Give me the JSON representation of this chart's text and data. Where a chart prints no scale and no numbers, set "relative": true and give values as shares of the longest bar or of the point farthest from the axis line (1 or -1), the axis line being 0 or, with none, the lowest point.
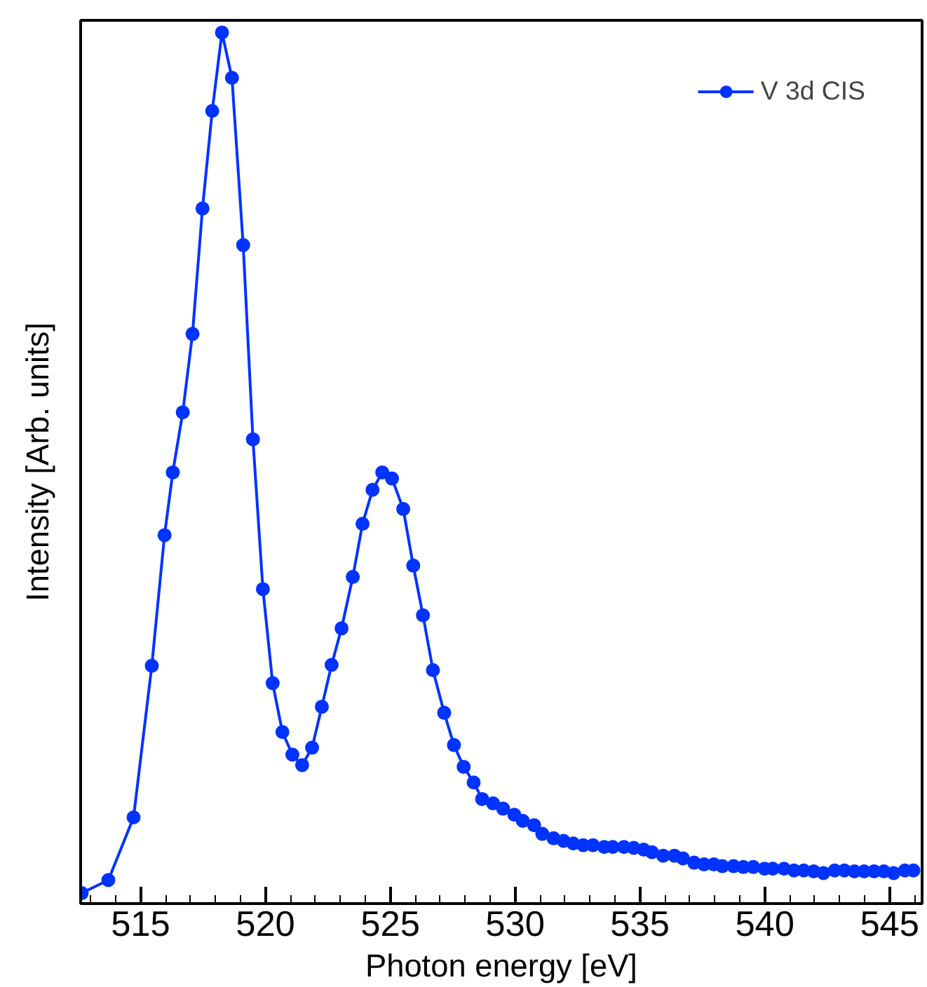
{
  "chart_data": {
    "type": "line",
    "relative": true,
    "xlabel": "Photon energy [eV]",
    "ylabel": "Intensity [Arb. units]",
    "x": [
      512.64,
      513.71,
      514.72,
      515.45,
      515.96,
      516.29,
      516.69,
      517.08,
      517.48,
      517.87,
      518.26,
      518.66,
      519.11,
      519.5,
      519.9,
      520.29,
      520.68,
      521.08,
      521.47,
      521.87,
      522.26,
      522.65,
      523.05,
      523.5,
      523.89,
      524.29,
      524.68,
      525.07,
      525.52,
      525.92,
      526.31,
      526.71,
      527.16,
      527.55,
      527.94,
      528.34,
      528.68,
      529.12,
      529.52,
      529.97,
      530.31,
      530.76,
      531.09,
      531.54,
      531.94,
      532.33,
      532.73,
      533.12,
      533.57,
      533.91,
      534.36,
      534.75,
      535.15,
      535.48,
      535.93,
      536.38,
      536.72,
      537.17,
      537.57,
      537.96,
      538.3,
      538.75,
      539.14,
      539.54,
      539.99,
      540.32,
      540.77,
      541.17,
      541.56,
      541.96,
      542.35,
      542.8,
      543.19,
      543.59,
      543.98,
      544.38,
      544.77,
      545.16,
      545.61,
      545.95
    ],
    "series": [
      {
        "name": "V 3d CIS",
        "color": "#0033ff",
        "values": [
          0.012,
          0.027,
          0.099,
          0.273,
          0.423,
          0.495,
          0.564,
          0.654,
          0.798,
          0.91,
          1.0,
          0.948,
          0.756,
          0.533,
          0.361,
          0.253,
          0.197,
          0.171,
          0.159,
          0.179,
          0.226,
          0.274,
          0.316,
          0.375,
          0.436,
          0.475,
          0.495,
          0.488,
          0.453,
          0.388,
          0.331,
          0.268,
          0.219,
          0.182,
          0.157,
          0.139,
          0.12,
          0.115,
          0.109,
          0.102,
          0.095,
          0.09,
          0.08,
          0.075,
          0.072,
          0.069,
          0.067,
          0.067,
          0.065,
          0.065,
          0.065,
          0.064,
          0.062,
          0.059,
          0.055,
          0.055,
          0.052,
          0.047,
          0.045,
          0.045,
          0.043,
          0.043,
          0.042,
          0.042,
          0.04,
          0.04,
          0.04,
          0.038,
          0.038,
          0.037,
          0.035,
          0.038,
          0.038,
          0.037,
          0.037,
          0.037,
          0.037,
          0.035,
          0.038,
          0.038
        ]
      }
    ],
    "xlim": [
      512.6,
      546.3
    ],
    "xticks": [
      515,
      520,
      525,
      530,
      535,
      540,
      545
    ],
    "legend": "top right",
    "marker": "circle",
    "line_style": "solid",
    "grid": false
  }
}
